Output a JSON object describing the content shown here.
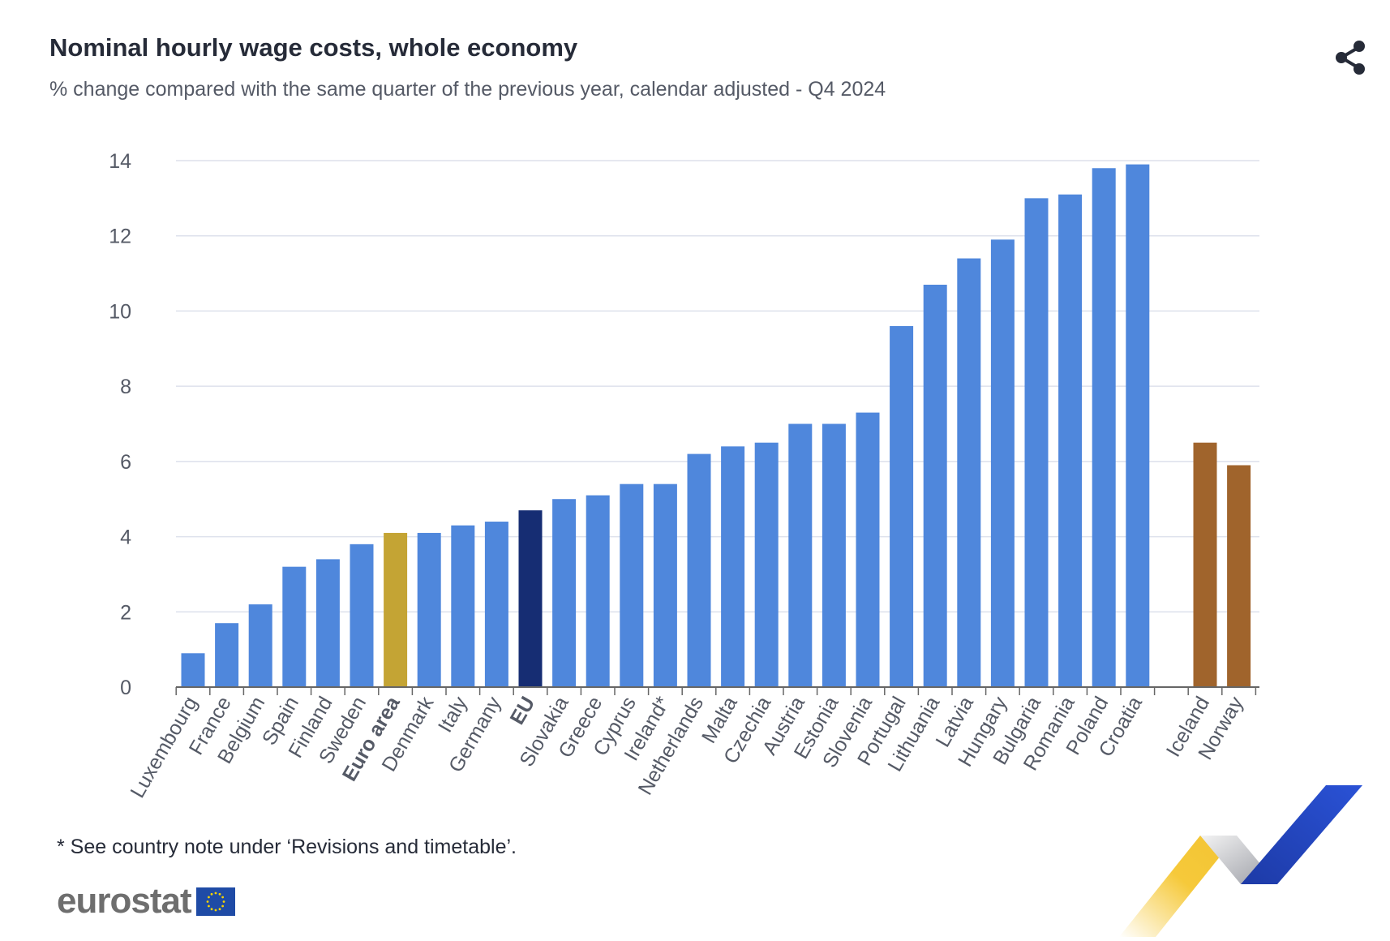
{
  "header": {
    "title": "Nominal hourly wage costs, whole economy",
    "subtitle": "% change compared with the same quarter of the previous year, calendar adjusted - Q4 2024"
  },
  "footer": {
    "note": "* See country note under ‘Revisions and timetable’.",
    "logo_text": "eurostat"
  },
  "icons": {
    "share": "share-icon",
    "flag": "eu-flag-icon"
  },
  "colors": {
    "countries": "#4f87dc",
    "euro_area": "#c4a434",
    "eu": "#162d73",
    "efta": "#a0642c",
    "grid": "#dde1ec",
    "axis": "#666666",
    "tick_text": "#555a66"
  },
  "chart_data": {
    "type": "bar",
    "title": "Nominal hourly wage costs, whole economy",
    "subtitle": "% change compared with the same quarter of the previous year, calendar adjusted - Q4 2024",
    "xlabel": "",
    "ylabel": "",
    "ylim": [
      0,
      14
    ],
    "yticks": [
      0,
      2,
      4,
      6,
      8,
      10,
      12,
      14
    ],
    "grid": true,
    "categories": [
      "Luxembourg",
      "France",
      "Belgium",
      "Spain",
      "Finland",
      "Sweden",
      "Euro area",
      "Denmark",
      "Italy",
      "Germany",
      "EU",
      "Slovakia",
      "Greece",
      "Cyprus",
      "Ireland*",
      "Netherlands",
      "Malta",
      "Czechia",
      "Austria",
      "Estonia",
      "Slovenia",
      "Portugal",
      "Lithuania",
      "Latvia",
      "Hungary",
      "Bulgaria",
      "Romania",
      "Poland",
      "Croatia",
      "Iceland",
      "Norway"
    ],
    "values": [
      0.9,
      1.7,
      2.2,
      3.2,
      3.4,
      3.8,
      4.1,
      4.1,
      4.3,
      4.4,
      4.7,
      5.0,
      5.1,
      5.4,
      5.4,
      6.2,
      6.4,
      6.5,
      7.0,
      7.0,
      7.3,
      9.6,
      10.7,
      11.4,
      11.9,
      13.0,
      13.1,
      13.8,
      13.9,
      6.5,
      5.9
    ],
    "groups": [
      "country",
      "country",
      "country",
      "country",
      "country",
      "country",
      "euro_area",
      "country",
      "country",
      "country",
      "eu",
      "country",
      "country",
      "country",
      "country",
      "country",
      "country",
      "country",
      "country",
      "country",
      "country",
      "country",
      "country",
      "country",
      "country",
      "country",
      "country",
      "country",
      "country",
      "efta",
      "efta"
    ],
    "bold_categories": [
      "Euro area",
      "EU"
    ]
  }
}
